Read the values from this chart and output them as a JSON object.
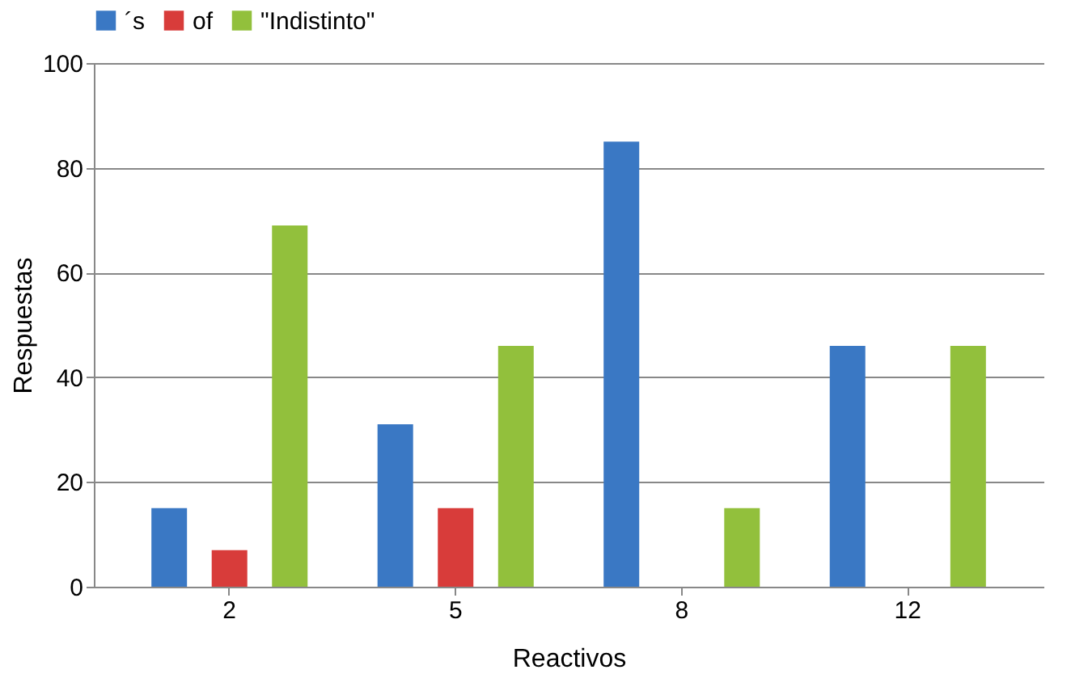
{
  "chart_data": {
    "type": "bar",
    "xlabel": "Reactivos",
    "ylabel": "Respuestas",
    "categories": [
      "2",
      "5",
      "8",
      "12"
    ],
    "series": [
      {
        "name": "´s",
        "color": "#3a78c4",
        "values": [
          15,
          31,
          85,
          46
        ]
      },
      {
        "name": "of",
        "color": "#d83c3a",
        "values": [
          7,
          15,
          null,
          null
        ]
      },
      {
        "name": "\"Indistinto\"",
        "color": "#92c03c",
        "values": [
          69,
          46,
          15,
          46
        ]
      }
    ],
    "ylim": [
      0,
      100
    ],
    "yticks": [
      0,
      20,
      40,
      60,
      80,
      100
    ],
    "grid": "y",
    "legend": "top"
  }
}
